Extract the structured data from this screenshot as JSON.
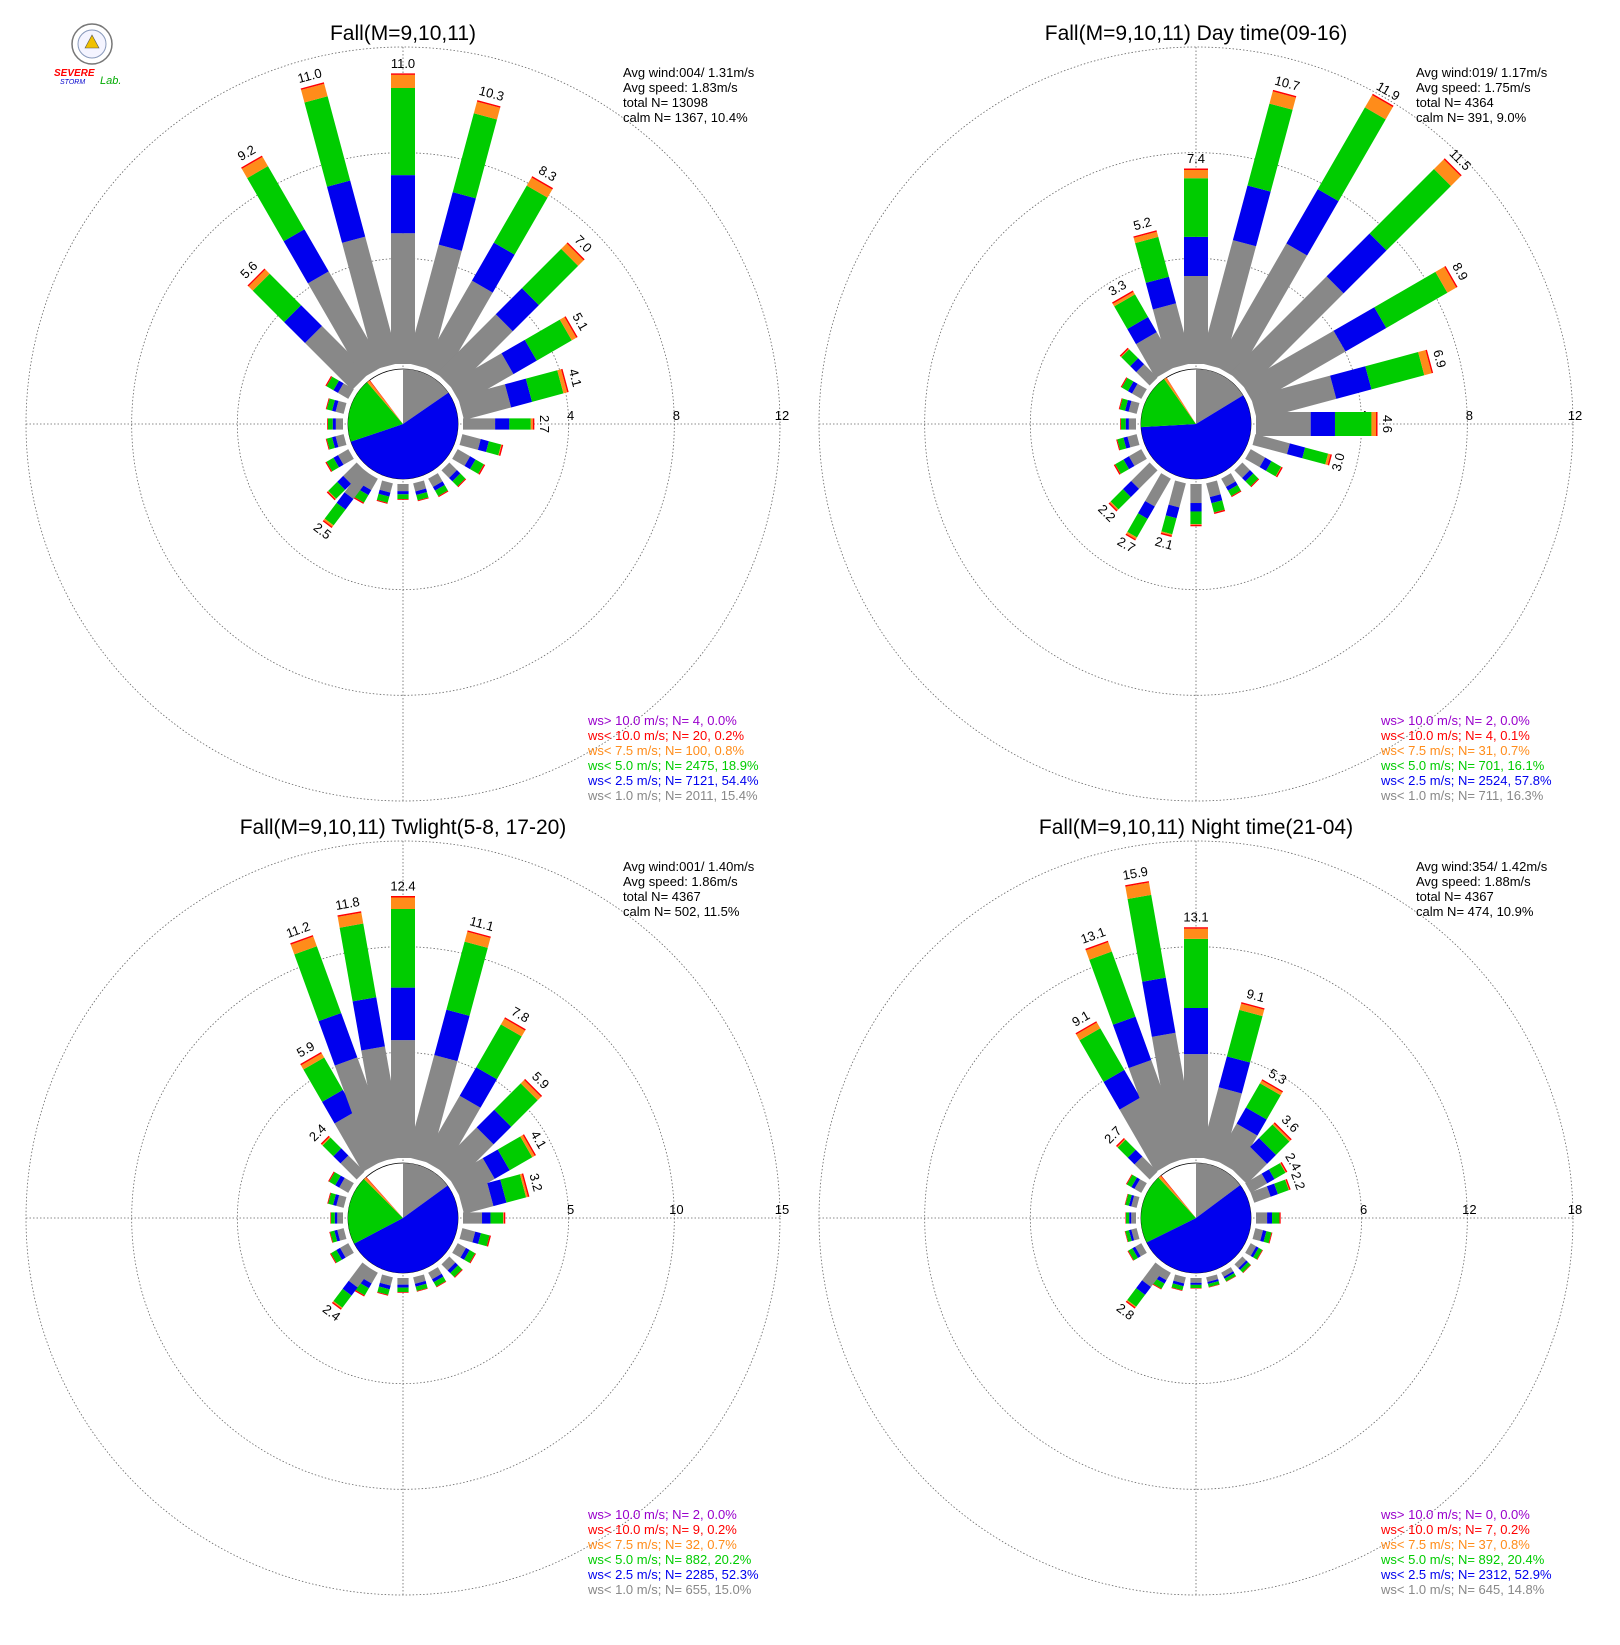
{
  "colors": {
    "gt10": "#9900cc",
    "lt10": "#ff0000",
    "lt75": "#ff8c1a",
    "lt5": "#00cc00",
    "lt25": "#0000ee",
    "lt1": "#888888",
    "grid": "#666666",
    "text": "#000000"
  },
  "logo": {
    "line1": "SEVERE",
    "line2": "STORM",
    "line3": "Lab."
  },
  "legend_rows": [
    {
      "key": "gt10",
      "label": "ws> 10.0 m/s; N="
    },
    {
      "key": "lt10",
      "label": "ws< 10.0 m/s; N="
    },
    {
      "key": "lt75",
      "label": "ws<  7.5 m/s; N="
    },
    {
      "key": "lt5",
      "label": "ws<  5.0 m/s; N="
    },
    {
      "key": "lt25",
      "label": "ws<  2.5 m/s; N="
    },
    {
      "key": "lt1",
      "label": "ws<  1.0 m/s; N="
    }
  ],
  "chart_data": [
    {
      "type": "windrose",
      "title": "Fall(M=9,10,11)",
      "rmax": 12,
      "ring_labels": [
        "4",
        "8",
        "12"
      ],
      "stats": [
        "Avg wind:004/ 1.31m/s",
        "Avg speed: 1.83m/s",
        "total N=       13098",
        "calm N=   1367,  10.4%"
      ],
      "legend": [
        {
          "n": "4",
          "pct": "0.0%"
        },
        {
          "n": "20",
          "pct": "0.2%"
        },
        {
          "n": "100",
          "pct": "0.8%"
        },
        {
          "n": "2475",
          "pct": "18.9%"
        },
        {
          "n": "7121",
          "pct": "54.4%"
        },
        {
          "n": "2011",
          "pct": "15.4%"
        }
      ],
      "pie": [
        15.4,
        54.4,
        18.9,
        0.8,
        0.2,
        0.0
      ],
      "petals": [
        {
          "dir": 0,
          "total": 11.0,
          "label": "11.0"
        },
        {
          "dir": 15,
          "total": 10.3,
          "label": "10.3"
        },
        {
          "dir": 30,
          "total": 8.3,
          "label": "8.3"
        },
        {
          "dir": 45,
          "total": 7.0,
          "label": "7.0"
        },
        {
          "dir": 60,
          "total": 5.1,
          "label": "5.1"
        },
        {
          "dir": 75,
          "total": 4.1,
          "label": "4.1"
        },
        {
          "dir": 90,
          "total": 2.7,
          "label": "2.7"
        },
        {
          "dir": 105,
          "total": 1.6
        },
        {
          "dir": 120,
          "total": 1.2
        },
        {
          "dir": 135,
          "total": 0.9
        },
        {
          "dir": 150,
          "total": 0.8
        },
        {
          "dir": 165,
          "total": 0.7
        },
        {
          "dir": 180,
          "total": 0.6
        },
        {
          "dir": 195,
          "total": 0.8
        },
        {
          "dir": 210,
          "total": 1.1
        },
        {
          "dir": 225,
          "total": 1.6
        },
        {
          "dir": 240,
          "total": 1.0
        },
        {
          "dir": 255,
          "total": 0.7
        },
        {
          "dir": 270,
          "total": 0.6
        },
        {
          "dir": 285,
          "total": 0.7
        },
        {
          "dir": 300,
          "total": 1.0
        },
        {
          "dir": 315,
          "total": 5.6,
          "label": "5.6"
        },
        {
          "dir": 330,
          "total": 9.2,
          "label": "9.2"
        },
        {
          "dir": 345,
          "total": 11.0,
          "label": "11.0"
        },
        {
          "dir": 217,
          "total": 2.5,
          "label": "2.5"
        }
      ]
    },
    {
      "type": "windrose",
      "title": "Fall(M=9,10,11) Day time(09-16)",
      "rmax": 12,
      "ring_labels": [
        "4",
        "8",
        "12"
      ],
      "stats": [
        "Avg wind:019/ 1.17m/s",
        "Avg speed: 1.75m/s",
        "total N=        4364",
        "calm N=    391,   9.0%"
      ],
      "legend": [
        {
          "n": "2",
          "pct": "0.0%"
        },
        {
          "n": "4",
          "pct": "0.1%"
        },
        {
          "n": "31",
          "pct": "0.7%"
        },
        {
          "n": "701",
          "pct": "16.1%"
        },
        {
          "n": "2524",
          "pct": "57.8%"
        },
        {
          "n": "711",
          "pct": "16.3%"
        }
      ],
      "pie": [
        16.3,
        57.8,
        16.1,
        0.7,
        0.1,
        0.0
      ],
      "petals": [
        {
          "dir": 0,
          "total": 7.4,
          "label": "7.4"
        },
        {
          "dir": 15,
          "total": 10.7,
          "label": "10.7"
        },
        {
          "dir": 30,
          "total": 11.9,
          "label": "11.9"
        },
        {
          "dir": 45,
          "total": 11.5,
          "label": "11.5"
        },
        {
          "dir": 60,
          "total": 8.9,
          "label": "8.9"
        },
        {
          "dir": 75,
          "total": 6.9,
          "label": "6.9"
        },
        {
          "dir": 90,
          "total": 4.6,
          "label": "4.6"
        },
        {
          "dir": 105,
          "total": 3.0,
          "label": "3.0"
        },
        {
          "dir": 120,
          "total": 1.4
        },
        {
          "dir": 135,
          "total": 0.9
        },
        {
          "dir": 150,
          "total": 0.8
        },
        {
          "dir": 165,
          "total": 1.2
        },
        {
          "dir": 180,
          "total": 1.6
        },
        {
          "dir": 195,
          "total": 2.1,
          "label": "2.1"
        },
        {
          "dir": 210,
          "total": 2.7,
          "label": "2.7"
        },
        {
          "dir": 225,
          "total": 2.2,
          "label": "2.2"
        },
        {
          "dir": 240,
          "total": 1.2
        },
        {
          "dir": 255,
          "total": 0.8
        },
        {
          "dir": 270,
          "total": 0.6
        },
        {
          "dir": 285,
          "total": 0.7
        },
        {
          "dir": 300,
          "total": 0.9
        },
        {
          "dir": 315,
          "total": 1.6
        },
        {
          "dir": 330,
          "total": 3.3,
          "label": "3.3"
        },
        {
          "dir": 345,
          "total": 5.2,
          "label": "5.2"
        }
      ]
    },
    {
      "type": "windrose",
      "title": "Fall(M=9,10,11) Twlight(5-8, 17-20)",
      "rmax": 15,
      "ring_labels": [
        "5",
        "10",
        "15"
      ],
      "stats": [
        "Avg wind:001/ 1.40m/s",
        "Avg speed: 1.86m/s",
        "total N=        4367",
        "calm N=    502,  11.5%"
      ],
      "legend": [
        {
          "n": "2",
          "pct": "0.0%"
        },
        {
          "n": "9",
          "pct": "0.2%"
        },
        {
          "n": "32",
          "pct": "0.7%"
        },
        {
          "n": "882",
          "pct": "20.2%"
        },
        {
          "n": "2285",
          "pct": "52.3%"
        },
        {
          "n": "655",
          "pct": "15.0%"
        }
      ],
      "pie": [
        15.0,
        52.3,
        20.2,
        0.7,
        0.2,
        0.0
      ],
      "petals": [
        {
          "dir": 0,
          "total": 12.4,
          "label": "12.4"
        },
        {
          "dir": 15,
          "total": 11.1,
          "label": "11.1"
        },
        {
          "dir": 30,
          "total": 7.8,
          "label": "7.8"
        },
        {
          "dir": 45,
          "total": 5.9,
          "label": "5.9"
        },
        {
          "dir": 60,
          "total": 4.1,
          "label": "4.1"
        },
        {
          "dir": 75,
          "total": 3.2,
          "label": "3.2"
        },
        {
          "dir": 90,
          "total": 2.0
        },
        {
          "dir": 105,
          "total": 1.4
        },
        {
          "dir": 120,
          "total": 1.0
        },
        {
          "dir": 135,
          "total": 0.9
        },
        {
          "dir": 150,
          "total": 0.8
        },
        {
          "dir": 165,
          "total": 0.7
        },
        {
          "dir": 180,
          "total": 0.7
        },
        {
          "dir": 195,
          "total": 0.9
        },
        {
          "dir": 210,
          "total": 1.3
        },
        {
          "dir": 217,
          "total": 2.4,
          "label": "2.4"
        },
        {
          "dir": 240,
          "total": 1.0
        },
        {
          "dir": 255,
          "total": 0.7
        },
        {
          "dir": 270,
          "total": 0.6
        },
        {
          "dir": 285,
          "total": 0.8
        },
        {
          "dir": 300,
          "total": 1.1
        },
        {
          "dir": 315,
          "total": 2.4,
          "label": "2.4"
        },
        {
          "dir": 330,
          "total": 5.9,
          "label": "5.9"
        },
        {
          "dir": 340,
          "total": 11.2,
          "label": "11.2"
        },
        {
          "dir": 350,
          "total": 11.8,
          "label": "11.8"
        }
      ]
    },
    {
      "type": "windrose",
      "title": "Fall(M=9,10,11) Night time(21-04)",
      "rmax": 18,
      "ring_labels": [
        "6",
        "12",
        "18"
      ],
      "stats": [
        "Avg wind:354/ 1.42m/s",
        "Avg speed: 1.88m/s",
        "total N=        4367",
        "calm N=    474,  10.9%"
      ],
      "legend": [
        {
          "n": "0",
          "pct": "0.0%"
        },
        {
          "n": "7",
          "pct": "0.2%"
        },
        {
          "n": "37",
          "pct": "0.8%"
        },
        {
          "n": "892",
          "pct": "20.4%"
        },
        {
          "n": "2312",
          "pct": "52.9%"
        },
        {
          "n": "645",
          "pct": "14.8%"
        }
      ],
      "pie": [
        14.8,
        52.9,
        20.4,
        0.8,
        0.2,
        0.0
      ],
      "petals": [
        {
          "dir": 0,
          "total": 13.1,
          "label": "13.1"
        },
        {
          "dir": 15,
          "total": 9.1,
          "label": "9.1"
        },
        {
          "dir": 30,
          "total": 5.3,
          "label": "5.3"
        },
        {
          "dir": 45,
          "total": 3.6,
          "label": "3.6"
        },
        {
          "dir": 60,
          "total": 2.4,
          "label": "2.4"
        },
        {
          "dir": 70,
          "total": 2.2,
          "label": "2.2"
        },
        {
          "dir": 90,
          "total": 1.4
        },
        {
          "dir": 105,
          "total": 1.0
        },
        {
          "dir": 120,
          "total": 0.8
        },
        {
          "dir": 135,
          "total": 0.7
        },
        {
          "dir": 150,
          "total": 0.6
        },
        {
          "dir": 165,
          "total": 0.6
        },
        {
          "dir": 180,
          "total": 0.6
        },
        {
          "dir": 195,
          "total": 0.8
        },
        {
          "dir": 210,
          "total": 1.1
        },
        {
          "dir": 217,
          "total": 2.8,
          "label": "2.8"
        },
        {
          "dir": 240,
          "total": 0.9
        },
        {
          "dir": 255,
          "total": 0.7
        },
        {
          "dir": 270,
          "total": 0.6
        },
        {
          "dir": 285,
          "total": 0.7
        },
        {
          "dir": 300,
          "total": 1.0
        },
        {
          "dir": 315,
          "total": 2.7,
          "label": "2.7"
        },
        {
          "dir": 330,
          "total": 9.1,
          "label": "9.1"
        },
        {
          "dir": 340,
          "total": 13.1,
          "label": "13.1"
        },
        {
          "dir": 350,
          "total": 15.9,
          "label": "15.9"
        }
      ]
    }
  ]
}
